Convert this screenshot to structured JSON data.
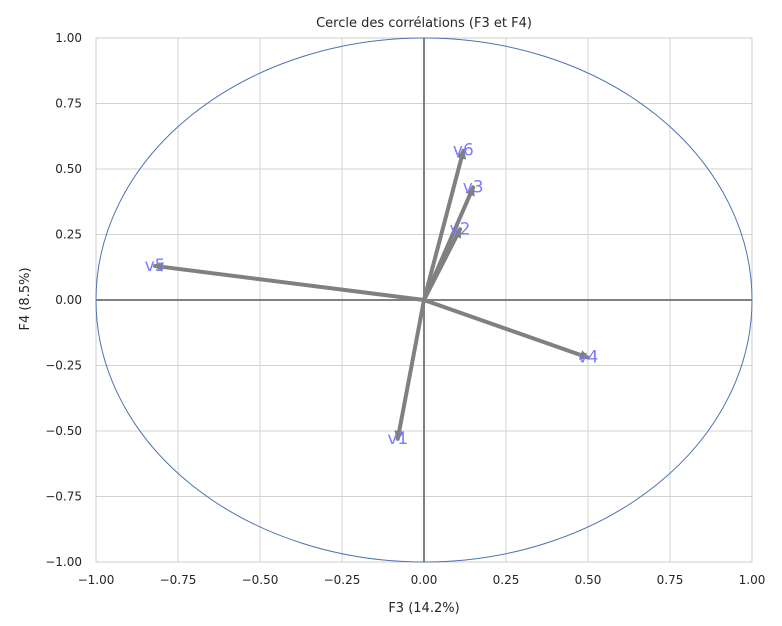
{
  "chart_data": {
    "type": "scatter",
    "subtype": "correlation-circle",
    "title": "Cercle des corrélations (F3 et F4)",
    "xlabel": "F3 (14.2%)",
    "ylabel": "F4 (8.5%)",
    "xlim": [
      -1.0,
      1.0
    ],
    "ylim": [
      -1.0,
      1.0
    ],
    "x_ticks": [
      "−1.00",
      "−0.75",
      "−0.50",
      "−0.25",
      "0.00",
      "0.25",
      "0.50",
      "0.75",
      "1.00"
    ],
    "y_ticks": [
      "1.00",
      "0.75",
      "0.50",
      "0.25",
      "0.00",
      "−0.25",
      "−0.50",
      "−0.75",
      "−1.00"
    ],
    "x_tick_values": [
      -1.0,
      -0.75,
      -0.5,
      -0.25,
      0.0,
      0.25,
      0.5,
      0.75,
      1.0
    ],
    "y_tick_values": [
      1.0,
      0.75,
      0.5,
      0.25,
      0.0,
      -0.25,
      -0.5,
      -0.75,
      -1.0
    ],
    "grid": true,
    "unit_circle": true,
    "colors": {
      "circle": "#4c72b0",
      "arrow": "#808080",
      "label": "#7b7bff",
      "grid": "#d3d3d3",
      "axis": "#808080",
      "spine": "#cccccc"
    },
    "vectors": [
      {
        "label": "v1",
        "x": -0.08,
        "y": -0.53
      },
      {
        "label": "v2",
        "x": 0.11,
        "y": 0.27
      },
      {
        "label": "v3",
        "x": 0.15,
        "y": 0.43
      },
      {
        "label": "v4",
        "x": 0.5,
        "y": -0.22
      },
      {
        "label": "v5",
        "x": -0.82,
        "y": 0.13
      },
      {
        "label": "v6",
        "x": 0.12,
        "y": 0.57
      }
    ]
  }
}
